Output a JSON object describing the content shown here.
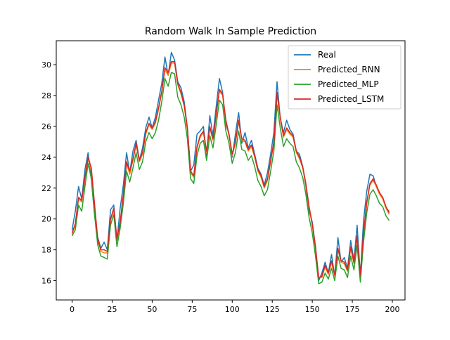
{
  "chart_data": {
    "type": "line",
    "title": "Random Walk In Sample Prediction",
    "xlabel": "",
    "ylabel": "",
    "xlim": [
      -9.9,
      207.9
    ],
    "ylim": [
      14.75,
      31.55
    ],
    "xticks": [
      0,
      25,
      50,
      75,
      100,
      125,
      150,
      175,
      200
    ],
    "yticks": [
      16,
      18,
      20,
      22,
      24,
      26,
      28,
      30
    ],
    "grid": false,
    "legend": "top-right",
    "series": [
      {
        "name": "Real",
        "color": "#1f77b4",
        "x": [
          0,
          2,
          4,
          6,
          8,
          10,
          12,
          14,
          16,
          18,
          20,
          22,
          24,
          26,
          28,
          30,
          32,
          34,
          36,
          38,
          40,
          42,
          44,
          46,
          48,
          50,
          52,
          54,
          56,
          58,
          60,
          62,
          64,
          66,
          68,
          70,
          72,
          74,
          76,
          78,
          80,
          82,
          84,
          86,
          88,
          90,
          92,
          94,
          96,
          98,
          100,
          102,
          104,
          106,
          108,
          110,
          112,
          114,
          116,
          118,
          120,
          122,
          124,
          126,
          128,
          130,
          132,
          134,
          136,
          138,
          140,
          142,
          144,
          146,
          148,
          150,
          152,
          154,
          156,
          158,
          160,
          162,
          164,
          166,
          168,
          170,
          172,
          174,
          176,
          178,
          180,
          182,
          184,
          186,
          188,
          190,
          192,
          194,
          196,
          198
        ],
        "values": [
          19.3,
          20.5,
          22.1,
          21.3,
          23.2,
          24.3,
          22.6,
          20.3,
          18.8,
          18.1,
          18.5,
          18.0,
          20.6,
          20.9,
          18.6,
          20.7,
          22.2,
          24.3,
          23.0,
          24.4,
          25.1,
          23.8,
          24.6,
          25.9,
          26.6,
          25.9,
          26.6,
          27.7,
          28.8,
          30.5,
          29.3,
          30.8,
          30.3,
          28.9,
          28.5,
          27.6,
          25.9,
          23.1,
          23.5,
          25.5,
          25.7,
          26.0,
          24.1,
          26.7,
          25.4,
          27.3,
          29.1,
          28.2,
          26.1,
          25.5,
          24.0,
          25.5,
          26.9,
          24.9,
          25.6,
          24.6,
          25.1,
          24.2,
          23.3,
          22.9,
          22.2,
          23.0,
          24.2,
          25.6,
          28.9,
          26.5,
          25.6,
          26.4,
          25.8,
          25.5,
          24.4,
          24.2,
          23.4,
          22.1,
          20.5,
          19.8,
          18.2,
          16.0,
          16.5,
          17.2,
          16.5,
          17.7,
          16.3,
          18.8,
          17.2,
          17.5,
          16.8,
          18.6,
          17.3,
          19.6,
          16.3,
          19.9,
          21.8,
          22.9,
          22.8,
          22.1,
          21.6,
          21.4,
          20.7,
          20.5
        ]
      },
      {
        "name": "Predicted_RNN",
        "color": "#ff7f0e",
        "x": [
          0,
          2,
          4,
          6,
          8,
          10,
          12,
          14,
          16,
          18,
          20,
          22,
          24,
          26,
          28,
          30,
          32,
          34,
          36,
          38,
          40,
          42,
          44,
          46,
          48,
          50,
          52,
          54,
          56,
          58,
          60,
          62,
          64,
          66,
          68,
          70,
          72,
          74,
          76,
          78,
          80,
          82,
          84,
          86,
          88,
          90,
          92,
          94,
          96,
          98,
          100,
          102,
          104,
          106,
          108,
          110,
          112,
          114,
          116,
          118,
          120,
          122,
          124,
          126,
          128,
          130,
          132,
          134,
          136,
          138,
          140,
          142,
          144,
          146,
          148,
          150,
          152,
          154,
          156,
          158,
          160,
          162,
          164,
          166,
          168,
          170,
          172,
          174,
          176,
          178,
          180,
          182,
          184,
          186,
          188,
          190,
          192,
          194,
          196,
          198
        ],
        "values": [
          19.0,
          19.6,
          21.3,
          21.1,
          22.6,
          23.9,
          23.1,
          20.9,
          18.6,
          17.9,
          17.8,
          17.8,
          19.9,
          20.6,
          18.6,
          19.7,
          21.5,
          23.6,
          22.9,
          23.8,
          24.8,
          23.7,
          24.2,
          25.5,
          26.1,
          25.8,
          26.2,
          27.1,
          28.2,
          29.7,
          29.3,
          30.1,
          30.1,
          28.7,
          28.1,
          27.3,
          25.8,
          23.0,
          22.7,
          24.6,
          25.3,
          25.6,
          24.3,
          25.9,
          25.1,
          26.7,
          28.3,
          28.0,
          26.3,
          25.4,
          24.1,
          24.9,
          26.3,
          25.1,
          25.0,
          24.4,
          24.7,
          24.0,
          23.1,
          22.7,
          22.0,
          22.5,
          23.7,
          24.9,
          28.1,
          26.5,
          25.3,
          25.8,
          25.5,
          25.3,
          24.3,
          23.9,
          23.3,
          22.2,
          20.7,
          19.6,
          18.1,
          16.2,
          16.2,
          16.9,
          16.4,
          17.2,
          16.3,
          18.0,
          17.2,
          17.1,
          16.6,
          18.1,
          17.1,
          18.8,
          16.3,
          19.0,
          21.0,
          22.2,
          22.5,
          22.1,
          21.6,
          21.3,
          20.7,
          20.3
        ]
      },
      {
        "name": "Predicted_MLP",
        "color": "#2ca02c",
        "x": [
          0,
          2,
          4,
          6,
          8,
          10,
          12,
          14,
          16,
          18,
          20,
          22,
          24,
          26,
          28,
          30,
          32,
          34,
          36,
          38,
          40,
          42,
          44,
          46,
          48,
          50,
          52,
          54,
          56,
          58,
          60,
          62,
          64,
          66,
          68,
          70,
          72,
          74,
          76,
          78,
          80,
          82,
          84,
          86,
          88,
          90,
          92,
          94,
          96,
          98,
          100,
          102,
          104,
          106,
          108,
          110,
          112,
          114,
          116,
          118,
          120,
          122,
          124,
          126,
          128,
          130,
          132,
          134,
          136,
          138,
          140,
          142,
          144,
          146,
          148,
          150,
          152,
          154,
          156,
          158,
          160,
          162,
          164,
          166,
          168,
          170,
          172,
          174,
          176,
          178,
          180,
          182,
          184,
          186,
          188,
          190,
          192,
          194,
          196,
          198
        ],
        "values": [
          18.9,
          19.3,
          20.9,
          20.5,
          22.1,
          23.6,
          22.6,
          20.3,
          18.3,
          17.6,
          17.5,
          17.4,
          19.6,
          20.3,
          18.2,
          19.4,
          21.0,
          23.1,
          22.4,
          23.3,
          24.3,
          23.2,
          23.7,
          25.0,
          25.6,
          25.2,
          25.6,
          26.4,
          27.6,
          29.1,
          28.6,
          29.5,
          29.4,
          27.9,
          27.4,
          26.6,
          25.2,
          22.6,
          22.3,
          24.1,
          24.9,
          25.1,
          23.8,
          25.4,
          24.6,
          26.1,
          27.7,
          27.4,
          25.7,
          24.9,
          23.6,
          24.3,
          25.7,
          24.5,
          24.4,
          23.8,
          24.1,
          23.4,
          22.5,
          22.1,
          21.5,
          21.9,
          23.1,
          24.4,
          27.4,
          25.9,
          24.7,
          25.2,
          24.9,
          24.7,
          23.7,
          23.3,
          22.7,
          21.6,
          20.1,
          19.1,
          17.6,
          15.8,
          15.9,
          16.5,
          16.1,
          16.8,
          16.0,
          17.6,
          16.8,
          16.7,
          16.2,
          17.6,
          16.7,
          18.3,
          15.9,
          18.5,
          20.4,
          21.6,
          21.9,
          21.5,
          21.0,
          20.8,
          20.2,
          19.9
        ]
      },
      {
        "name": "Predicted_LSTM",
        "color": "#d62728",
        "x": [
          0,
          2,
          4,
          6,
          8,
          10,
          12,
          14,
          16,
          18,
          20,
          22,
          24,
          26,
          28,
          30,
          32,
          34,
          36,
          38,
          40,
          42,
          44,
          46,
          48,
          50,
          52,
          54,
          56,
          58,
          60,
          62,
          64,
          66,
          68,
          70,
          72,
          74,
          76,
          78,
          80,
          82,
          84,
          86,
          88,
          90,
          92,
          94,
          96,
          98,
          100,
          102,
          104,
          106,
          108,
          110,
          112,
          114,
          116,
          118,
          120,
          122,
          124,
          126,
          128,
          130,
          132,
          134,
          136,
          138,
          140,
          142,
          144,
          146,
          148,
          150,
          152,
          154,
          156,
          158,
          160,
          162,
          164,
          166,
          168,
          170,
          172,
          174,
          176,
          178,
          180,
          182,
          184,
          186,
          188,
          190,
          192,
          194,
          196,
          198
        ],
        "values": [
          19.1,
          19.7,
          21.4,
          21.2,
          22.7,
          24.0,
          23.3,
          21.0,
          18.7,
          18.0,
          18.0,
          17.9,
          20.0,
          20.7,
          18.7,
          19.8,
          21.6,
          23.7,
          23.1,
          23.9,
          24.9,
          23.8,
          24.3,
          25.6,
          26.2,
          25.9,
          26.3,
          27.2,
          28.3,
          29.8,
          29.5,
          30.2,
          30.2,
          28.8,
          28.2,
          27.4,
          25.9,
          23.1,
          22.8,
          24.7,
          25.4,
          25.7,
          24.4,
          26.0,
          25.2,
          26.8,
          28.4,
          28.1,
          26.4,
          25.5,
          24.2,
          25.0,
          26.4,
          25.2,
          25.1,
          24.5,
          24.8,
          24.1,
          23.2,
          22.8,
          22.1,
          22.6,
          23.8,
          25.0,
          28.2,
          26.6,
          25.4,
          25.9,
          25.6,
          25.4,
          24.4,
          24.0,
          23.4,
          22.3,
          20.8,
          19.7,
          18.2,
          16.2,
          16.3,
          17.0,
          16.5,
          17.3,
          16.4,
          18.1,
          17.3,
          17.2,
          16.7,
          18.2,
          17.2,
          18.9,
          16.4,
          19.1,
          21.1,
          22.3,
          22.6,
          22.2,
          21.7,
          21.4,
          20.8,
          20.4
        ]
      }
    ]
  }
}
